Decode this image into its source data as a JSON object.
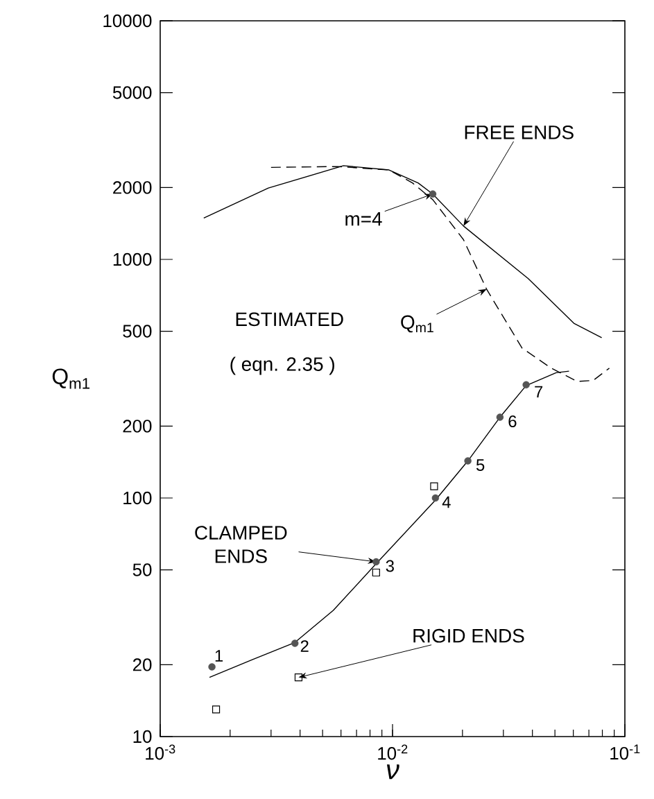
{
  "chart_data": {
    "type": "line",
    "log": "xy",
    "xlabel": "ν",
    "ylabel": "Q$_{m1}$",
    "xlim": [
      0.001,
      0.1
    ],
    "ylim": [
      10,
      10000
    ],
    "xticks": [
      {
        "value": 0.001,
        "label": "10$^{-3}$"
      },
      {
        "value": 0.01,
        "label": "10$^{-2}$"
      },
      {
        "value": 0.1,
        "label": "10$^{-1}$"
      }
    ],
    "yticks": [
      10,
      20,
      50,
      100,
      200,
      500,
      1000,
      2000,
      5000,
      10000
    ],
    "series": [
      {
        "color": "#000000",
        "marker": "none",
        "line_style": "solid",
        "x": [
          0.00154,
          0.00292,
          0.00615,
          0.00966,
          0.0129,
          0.0149,
          0.0202,
          0.0384,
          0.0603,
          0.0795
        ],
        "values": [
          1490,
          1990,
          2470,
          2370,
          2090,
          1880,
          1380,
          830,
          540,
          470
        ]
      },
      {
        "color": "#000000",
        "marker": "none",
        "line_style": "dashed",
        "x": [
          0.003,
          0.0058,
          0.00966,
          0.0122,
          0.0149,
          0.0202,
          0.0254,
          0.0361,
          0.0482,
          0.0624,
          0.0731,
          0.0857
        ],
        "values": [
          2430,
          2450,
          2370,
          2090,
          1780,
          1210,
          750,
          425,
          350,
          308,
          311,
          350
        ]
      },
      {
        "color": "#000000",
        "marker": "none",
        "line_style": "solid",
        "x": [
          0.00163,
          0.00249,
          0.0038,
          0.00556,
          0.0085,
          0.0153,
          0.0211,
          0.029,
          0.0376,
          0.0506,
          0.0575
        ],
        "values": [
          17.7,
          21,
          24.8,
          33.8,
          53,
          98,
          143,
          218,
          296,
          335,
          340
        ]
      },
      {
        "type": "scatter",
        "color": "#555555",
        "marker": "circle",
        "x": [
          0.00167,
          0.0038,
          0.0085,
          0.0153,
          0.0211,
          0.029,
          0.0376
        ],
        "values": [
          19.6,
          24.6,
          54,
          100,
          143,
          218,
          298
        ]
      },
      {
        "type": "scatter",
        "color": "#555555",
        "marker": "circle",
        "x": [
          0.0149
        ],
        "values": [
          1880
        ]
      },
      {
        "type": "scatter",
        "color": "#000000",
        "marker": "square",
        "x": [
          0.00174,
          0.00394,
          0.0085,
          0.0151
        ],
        "values": [
          13,
          17.7,
          48.7,
          112
        ]
      }
    ],
    "annotations": [
      {
        "text": "FREE ENDS",
        "x": 0.0202,
        "y": 1380
      },
      {
        "text": "m=4",
        "x": 0.0149,
        "y": 1880
      },
      "ESTIMATED",
      {
        "text": "Q$_{m1}$",
        "x": 0.0254,
        "y": 750
      },
      "( eqn. 2.35 )",
      {
        "text": "CLAMPED ENDS",
        "x": 0.0085,
        "y": 54
      },
      {
        "text": "RIGID ENDS",
        "x": 0.00394,
        "y": 17.7
      },
      {
        "text": "1",
        "x": 0.00167,
        "y": 19.6
      },
      {
        "text": "2",
        "x": 0.0038,
        "y": 24.6
      },
      {
        "text": "3",
        "x": 0.0085,
        "y": 54
      },
      {
        "text": "4",
        "x": 0.0153,
        "y": 100
      },
      {
        "text": "5",
        "x": 0.0211,
        "y": 143
      },
      {
        "text": "6",
        "x": 0.029,
        "y": 218
      },
      {
        "text": "7",
        "x": 0.0376,
        "y": 298
      }
    ]
  }
}
